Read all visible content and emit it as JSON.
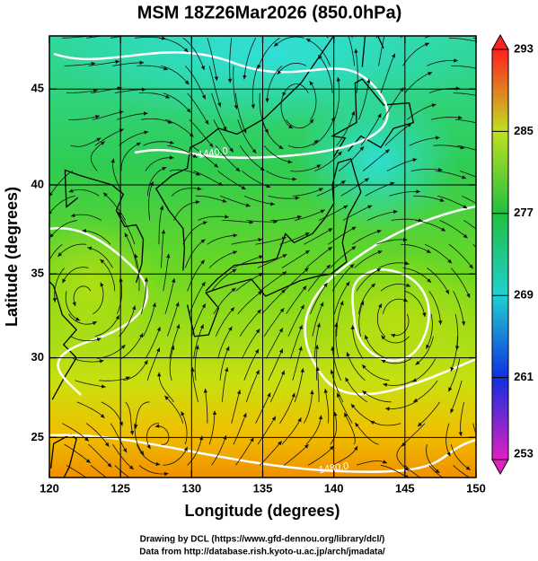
{
  "chart_data": {
    "type": "streamline",
    "title": "MSM 18Z26Mar2026 (850.0hPa)",
    "xlabel": "Longitude (degrees)",
    "ylabel": "Latitude  (degrees)",
    "xlim": [
      120,
      150
    ],
    "ylim": [
      22.4,
      47.6
    ],
    "xticks": [
      120,
      125,
      130,
      135,
      140,
      145,
      150
    ],
    "yticks": [
      25,
      30,
      35,
      40,
      45
    ],
    "projection": "mercator",
    "grid": true,
    "colorbar": {
      "lim": [
        253,
        293
      ],
      "ticks": [
        253,
        261,
        269,
        277,
        285,
        293
      ],
      "colors": [
        "#e020c0",
        "#1030e0",
        "#20d0d0",
        "#20c040",
        "#c0e020",
        "#ff2020"
      ]
    },
    "contour_labels": [
      {
        "text": "1440.0",
        "lon": 131.5,
        "lat": 41.7
      },
      {
        "text": "1480.0",
        "lon": 140.0,
        "lat": 23.0
      }
    ],
    "footer": [
      "Drawing by DCL (https://www.gfd-dennou.org/library/dcl/)",
      "Data from http://database.rish.kyoto-u.ac.jp/arch/jmadata/"
    ]
  }
}
